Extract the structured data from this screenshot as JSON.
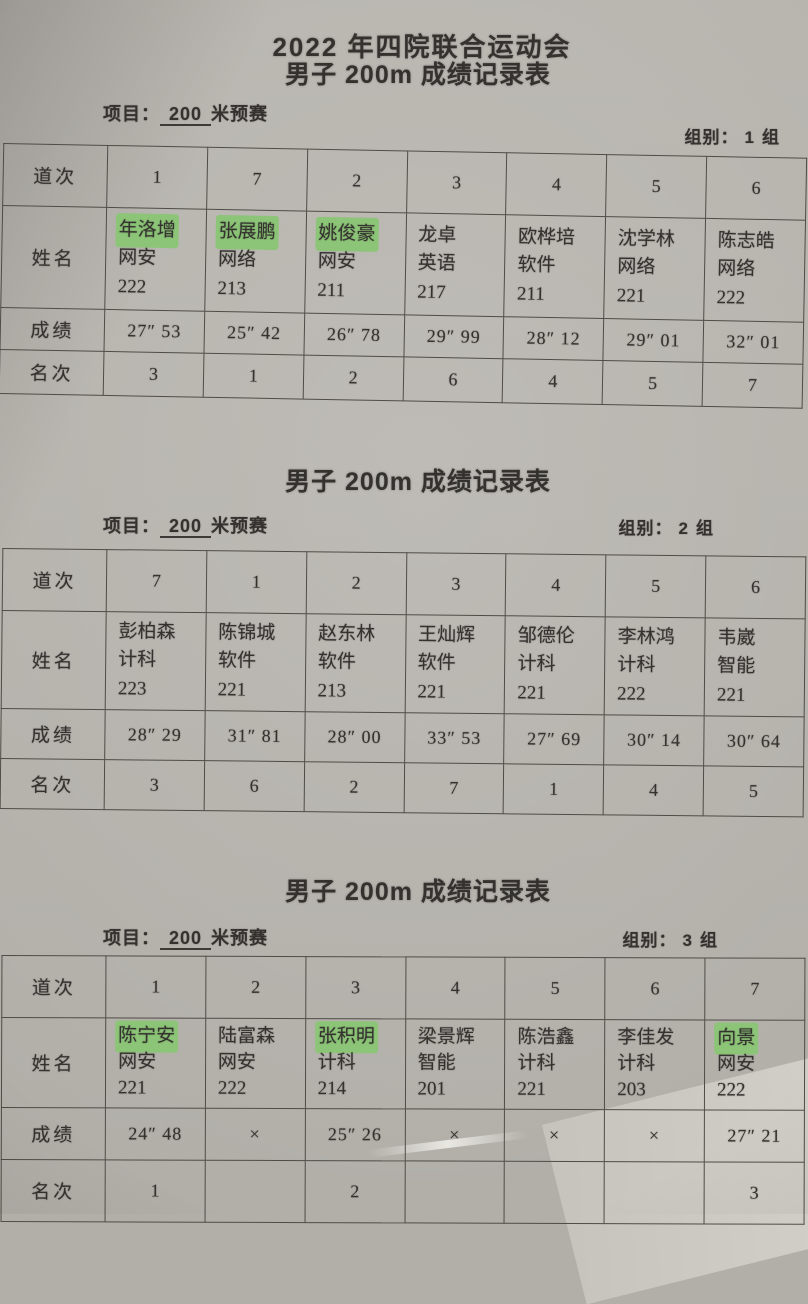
{
  "page": {
    "title": "2022 年四院联合运动会",
    "highlight_color": "#8cc577",
    "paper_color": "#b5b2ac",
    "ink_color": "#34322f"
  },
  "labels": {
    "project_label": "项目：",
    "project_value": "200",
    "project_suffix": "米预赛",
    "group_label": "组别：",
    "group_suffix": "组",
    "row_lane": "道次",
    "row_name": "姓名",
    "row_score": "成绩",
    "row_rank": "名次"
  },
  "sections": [
    {
      "subtitle": "男子 200m 成绩记录表",
      "group_no": "1",
      "lanes": [
        "1",
        "7",
        "2",
        "3",
        "4",
        "5",
        "6"
      ],
      "athletes": [
        {
          "name": "年洛增",
          "dept": "网安",
          "class_no": "222",
          "highlight": true
        },
        {
          "name": "张展鹏",
          "dept": "网络",
          "class_no": "213",
          "highlight": true
        },
        {
          "name": "姚俊豪",
          "dept": "网安",
          "class_no": "211",
          "highlight": true
        },
        {
          "name": "龙卓",
          "dept": "英语",
          "class_no": "217",
          "highlight": false
        },
        {
          "name": "欧桦培",
          "dept": "软件",
          "class_no": "211",
          "highlight": false
        },
        {
          "name": "沈学林",
          "dept": "网络",
          "class_no": "221",
          "highlight": false
        },
        {
          "name": "陈志皓",
          "dept": "网络",
          "class_no": "222",
          "highlight": false
        }
      ],
      "scores": [
        "27″ 53",
        "25″ 42",
        "26″ 78",
        "29″ 99",
        "28″ 12",
        "29″ 01",
        "32″ 01"
      ],
      "ranks": [
        "3",
        "1",
        "2",
        "6",
        "4",
        "5",
        "7"
      ]
    },
    {
      "subtitle": "男子 200m 成绩记录表",
      "group_no": "2",
      "lanes": [
        "7",
        "1",
        "2",
        "3",
        "4",
        "5",
        "6"
      ],
      "athletes": [
        {
          "name": "彭柏森",
          "dept": "计科",
          "class_no": "223",
          "highlight": false
        },
        {
          "name": "陈锦城",
          "dept": "软件",
          "class_no": "221",
          "highlight": false
        },
        {
          "name": "赵东林",
          "dept": "软件",
          "class_no": "213",
          "highlight": false
        },
        {
          "name": "王灿辉",
          "dept": "软件",
          "class_no": "221",
          "highlight": false
        },
        {
          "name": "邹德伦",
          "dept": "计科",
          "class_no": "221",
          "highlight": false
        },
        {
          "name": "李林鸿",
          "dept": "计科",
          "class_no": "222",
          "highlight": false
        },
        {
          "name": "韦崴",
          "dept": "智能",
          "class_no": "221",
          "highlight": false
        }
      ],
      "scores": [
        "28″ 29",
        "31″ 81",
        "28″ 00",
        "33″ 53",
        "27″ 69",
        "30″ 14",
        "30″ 64"
      ],
      "ranks": [
        "3",
        "6",
        "2",
        "7",
        "1",
        "4",
        "5"
      ]
    },
    {
      "subtitle": "男子 200m 成绩记录表",
      "group_no": "3",
      "lanes": [
        "1",
        "2",
        "3",
        "4",
        "5",
        "6",
        "7"
      ],
      "athletes": [
        {
          "name": "陈宁安",
          "dept": "网安",
          "class_no": "221",
          "highlight": true
        },
        {
          "name": "陆富森",
          "dept": "网安",
          "class_no": "222",
          "highlight": false
        },
        {
          "name": "张积明",
          "dept": "计科",
          "class_no": "214",
          "highlight": true
        },
        {
          "name": "梁景辉",
          "dept": "智能",
          "class_no": "201",
          "highlight": false
        },
        {
          "name": "陈浩鑫",
          "dept": "计科",
          "class_no": "221",
          "highlight": false
        },
        {
          "name": "李佳发",
          "dept": "计科",
          "class_no": "203",
          "highlight": false
        },
        {
          "name": "向景",
          "dept": "网安",
          "class_no": "222",
          "highlight": true
        }
      ],
      "scores": [
        "24″ 48",
        "×",
        "25″ 26",
        "×",
        "×",
        "×",
        "27″ 21"
      ],
      "ranks": [
        "1",
        "",
        "2",
        "",
        "",
        "",
        "3"
      ]
    }
  ]
}
